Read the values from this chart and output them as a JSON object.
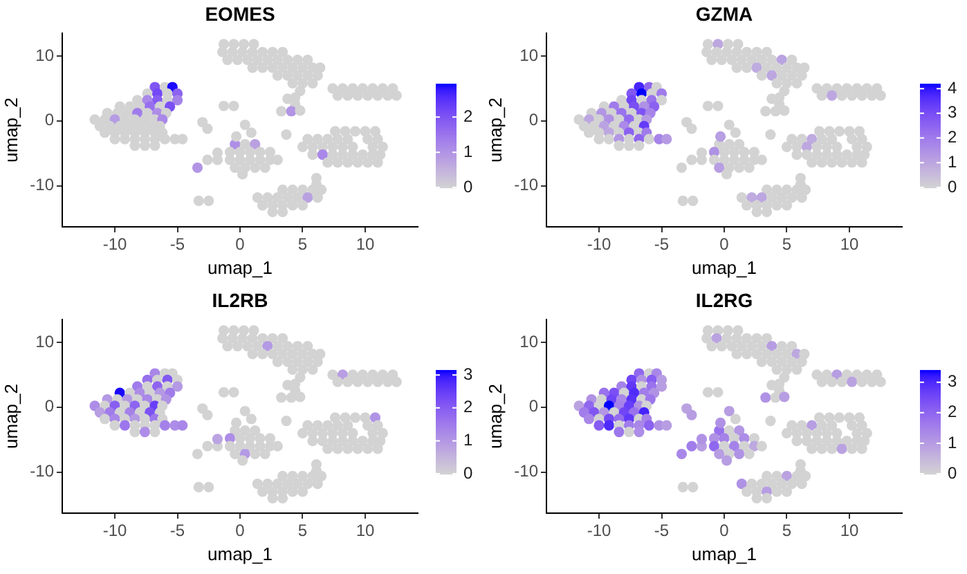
{
  "chart_data": [
    {
      "type": "scatter",
      "title": "EOMES",
      "xlabel": "umap_1",
      "ylabel": "umap_2",
      "xlim": [
        -14.2,
        14.2
      ],
      "ylim": [
        -16.3,
        13.5
      ],
      "xticks": [
        -10,
        -5,
        0,
        5,
        10
      ],
      "yticks": [
        -10,
        0,
        10
      ],
      "clim": [
        0,
        2.95
      ],
      "cticks": [
        0,
        1,
        2
      ],
      "marker": "circle",
      "x": [
        -6.8,
        -6,
        -5.4,
        -7.4,
        -6.6,
        -5.8,
        -5,
        -8.2,
        -7.4,
        -6.6,
        -5.8,
        -5,
        -9.6,
        -8.8,
        -8,
        -7.2,
        -6.4,
        -5.6,
        -10.6,
        -9.8,
        -9,
        -8.2,
        -7.4,
        -6.6,
        -5.9,
        -11.6,
        -10.8,
        -10,
        -9.2,
        -8.4,
        -7.6,
        -6.8,
        -6.2,
        -11.2,
        -10.4,
        -9.6,
        -8.8,
        -8,
        -7.2,
        -6.4,
        -10.8,
        -10,
        -9.2,
        -8.4,
        -7.6,
        -6.8,
        -6.2,
        -10,
        -9.2,
        -8.4,
        -7.6,
        -6.8,
        -6,
        -5.2,
        -4.6,
        -8.4,
        -7.6,
        -6.8,
        -1.3,
        -0.5,
        0.3,
        1.1,
        -1.4,
        -0.6,
        0.2,
        1,
        1.8,
        2.6,
        3.4,
        -1,
        -0.2,
        0.6,
        1.4,
        2.2,
        3,
        3.8,
        4.6,
        5.4,
        1,
        1.8,
        2.6,
        3.4,
        4.2,
        5,
        5.8,
        6.4,
        3,
        3.8,
        4.6,
        5.4,
        6.2,
        4.2,
        5,
        5.8,
        4.8,
        4.4,
        3.8,
        4.4,
        3.3,
        4.1,
        4.8,
        -1.3,
        -0.5,
        7.4,
        8.2,
        9,
        9.8,
        10.6,
        11.4,
        12.2,
        7.8,
        8.6,
        9.4,
        10.2,
        11,
        11.8,
        12.5,
        7.6,
        8.4,
        9.2,
        10,
        10.8,
        5.4,
        6.2,
        7,
        7.8,
        8.6,
        10.2,
        11,
        5,
        5.8,
        6.6,
        7.4,
        8.2,
        9,
        10.6,
        11.4,
        5.8,
        6.6,
        7.4,
        8.2,
        9,
        9.8,
        10.6,
        11.2,
        7,
        7.8,
        8.6,
        9.4,
        10.2,
        11,
        6.1,
        6.1,
        3.4,
        4.2,
        5,
        5.8,
        6.5,
        1.4,
        2.2,
        3,
        3.8,
        4.6,
        5.4,
        6.2,
        1.8,
        2.6,
        3.4,
        4.2,
        5,
        2.6,
        3.4,
        -3.3,
        -2.5,
        -0.4,
        0.4,
        1.2,
        -0.8,
        0,
        0.8,
        1.6,
        2.4,
        -2.6,
        -1.8,
        -0.8,
        0,
        0.8,
        1.6,
        2.4,
        3,
        -3.4,
        -0.4,
        0.4,
        1.2,
        2,
        0.2,
        -0.3,
        0.4,
        0.9,
        -3,
        -2.6,
        3.7,
        -1.8
      ],
      "values": [
        5.2,
        5.2,
        5.2,
        4.2,
        4.2,
        4.2,
        4.2,
        3.2,
        3.2,
        3.2,
        3.2,
        3.2,
        2.2,
        2.2,
        2.2,
        2.2,
        2.2,
        2.2,
        1.2,
        1.2,
        1.2,
        1.2,
        1.2,
        1.2,
        1.2,
        0.2,
        0.2,
        0.2,
        0.2,
        0.2,
        0.2,
        0.2,
        0.2,
        -0.8,
        -0.8,
        -0.8,
        -0.8,
        -0.8,
        -0.8,
        -0.8,
        -1.8,
        -1.8,
        -1.8,
        -1.8,
        -1.8,
        -1.8,
        -1.8,
        -2.8,
        -2.8,
        -2.8,
        -2.8,
        -2.8,
        -2.8,
        -2.8,
        -2.8,
        -3.8,
        -3.8,
        -3.8,
        11.8,
        11.8,
        11.8,
        11.8,
        10.6,
        10.6,
        10.6,
        10.6,
        10.6,
        10.6,
        10.6,
        9.4,
        9.4,
        9.4,
        9.4,
        9.4,
        9.4,
        9.4,
        9.4,
        9.4,
        8.2,
        8.2,
        8.2,
        8.2,
        8.2,
        8.2,
        8.2,
        8.2,
        7,
        7,
        7,
        7,
        7,
        5.8,
        5.8,
        5.8,
        4.6,
        3.6,
        3.4,
        2.6,
        1.5,
        1.5,
        1.6,
        2.3,
        2.3,
        5,
        5,
        5,
        5,
        5,
        5,
        5,
        3.9,
        3.9,
        3.9,
        3.9,
        3.9,
        3.9,
        3.9,
        -1.6,
        -1.6,
        -1.6,
        -1.6,
        -1.6,
        -2.8,
        -2.8,
        -2.8,
        -2.8,
        -2.8,
        -2.8,
        -2.8,
        -4,
        -4,
        -4,
        -4,
        -4,
        -4,
        -4,
        -4,
        -5.2,
        -5.2,
        -5.2,
        -5.2,
        -5.2,
        -5.2,
        -5.2,
        -5.2,
        -6.4,
        -6.4,
        -6.4,
        -6.4,
        -6.4,
        -6.4,
        -8.8,
        -9.8,
        -10.6,
        -10.6,
        -10.6,
        -10.6,
        -10.6,
        -11.8,
        -11.8,
        -11.8,
        -11.8,
        -11.8,
        -11.8,
        -11.8,
        -13,
        -13,
        -13,
        -13,
        -13,
        -14,
        -14,
        -12.3,
        -12.3,
        -3.6,
        -3.6,
        -3.6,
        -4.8,
        -4.8,
        -4.8,
        -4.8,
        -4.8,
        -6,
        -6,
        -6,
        -6,
        -6,
        -6,
        -6,
        -6,
        -7.2,
        -7.2,
        -7.2,
        -7.2,
        -7.2,
        -8.2,
        -2.4,
        -0.6,
        -1.8,
        -0.2,
        -1.2,
        -2.1,
        -4.9
      ],
      "cvalues": [
        2,
        0,
        2.9,
        0,
        2.2,
        0,
        1.8,
        0,
        1.2,
        1.9,
        0,
        1.3,
        0,
        0,
        0,
        1.6,
        0,
        2.1,
        0,
        0,
        0,
        1.4,
        0,
        1.1,
        0,
        0,
        0,
        0.9,
        0,
        0,
        0,
        0,
        1.2,
        0,
        0,
        0,
        0,
        0,
        0,
        0,
        0,
        0,
        0,
        0,
        0,
        0,
        0,
        0,
        0,
        0,
        0,
        0,
        0,
        0,
        0,
        0,
        0,
        0,
        0,
        0,
        0,
        0,
        0,
        0,
        0,
        0,
        0,
        0,
        0,
        0,
        0,
        0,
        0,
        0,
        0,
        0,
        0,
        0,
        0,
        0,
        0,
        0,
        0,
        0,
        0,
        0,
        0,
        0,
        0,
        0,
        0,
        0,
        0,
        0,
        0,
        0,
        0,
        0,
        0,
        1,
        0,
        0,
        0,
        0,
        0,
        0,
        0,
        0,
        0,
        0,
        0,
        0,
        0,
        0,
        0,
        0,
        0,
        0,
        0,
        0,
        0,
        0,
        0,
        0,
        0,
        0,
        0,
        0,
        0,
        0,
        0,
        0,
        0,
        0,
        0,
        0,
        0,
        0,
        1.2,
        0,
        0,
        0,
        0,
        0,
        0,
        0,
        0,
        0,
        0,
        0,
        0,
        0,
        0,
        0,
        0,
        0,
        0,
        0,
        0,
        0,
        0,
        0,
        0,
        0.8,
        0,
        0,
        0,
        0,
        0,
        0,
        0,
        0,
        0,
        0,
        1.1,
        0,
        0.8,
        0,
        0,
        0,
        0,
        0,
        0,
        0,
        0,
        0,
        0,
        0,
        0,
        0,
        1,
        0,
        0,
        0,
        0,
        0,
        0,
        0,
        0,
        0,
        0,
        0,
        0
      ]
    },
    {
      "type": "scatter",
      "title": "GZMA",
      "xlabel": "umap_1",
      "ylabel": "umap_2",
      "xlim": [
        -14.2,
        14.2
      ],
      "ylim": [
        -16.3,
        13.5
      ],
      "xticks": [
        -10,
        -5,
        0,
        5,
        10
      ],
      "yticks": [
        -10,
        0,
        10
      ],
      "clim": [
        0,
        4.2
      ],
      "cticks": [
        0,
        1,
        2,
        3,
        4
      ],
      "marker": "circle",
      "x": [
        -6.8,
        -6,
        -5.4,
        -7.4,
        -6.6,
        -5.8,
        -5,
        -8.2,
        -7.4,
        -6.6,
        -5.8,
        -5,
        -9.6,
        -8.8,
        -8,
        -7.2,
        -6.4,
        -5.6,
        -10.6,
        -9.8,
        -9,
        -8.2,
        -7.4,
        -6.6,
        -5.9,
        -11.6,
        -10.8,
        -10,
        -9.2,
        -8.4,
        -7.6,
        -6.8,
        -6.2,
        -11.2,
        -10.4,
        -9.6,
        -8.8,
        -8,
        -7.2,
        -6.4,
        -10.8,
        -10,
        -9.2,
        -8.4,
        -7.6,
        -6.8,
        -6.2,
        -10,
        -9.2,
        -8.4,
        -7.6,
        -6.8,
        -6,
        -5.2,
        -4.6,
        -8.4,
        -7.6,
        -6.8,
        -1.3,
        -0.5,
        0.3,
        1.1,
        -1.4,
        -0.6,
        0.2,
        1,
        1.8,
        2.6,
        3.4,
        -1,
        -0.2,
        0.6,
        1.4,
        2.2,
        3,
        3.8,
        4.6,
        5.4,
        1,
        1.8,
        2.6,
        3.4,
        4.2,
        5,
        5.8,
        6.4,
        3,
        3.8,
        4.6,
        5.4,
        6.2,
        4.2,
        5,
        5.8,
        4.8,
        4.4,
        3.8,
        4.4,
        3.3,
        4.1,
        4.8,
        -1.3,
        -0.5,
        7.4,
        8.2,
        9,
        9.8,
        10.6,
        11.4,
        12.2,
        7.8,
        8.6,
        9.4,
        10.2,
        11,
        11.8,
        12.5,
        7.6,
        8.4,
        9.2,
        10,
        10.8,
        5.4,
        6.2,
        7,
        7.8,
        8.6,
        10.2,
        11,
        5,
        5.8,
        6.6,
        7.4,
        8.2,
        9,
        10.6,
        11.4,
        5.8,
        6.6,
        7.4,
        8.2,
        9,
        9.8,
        10.6,
        11.2,
        7,
        7.8,
        8.6,
        9.4,
        10.2,
        11,
        6.1,
        6.1,
        3.4,
        4.2,
        5,
        5.8,
        6.5,
        1.4,
        2.2,
        3,
        3.8,
        4.6,
        5.4,
        6.2,
        1.8,
        2.6,
        3.4,
        4.2,
        5,
        2.6,
        3.4,
        -3.3,
        -2.5,
        -0.4,
        0.4,
        1.2,
        -0.8,
        0,
        0.8,
        1.6,
        2.4,
        -2.6,
        -1.8,
        -0.8,
        0,
        0.8,
        1.6,
        2.4,
        3,
        -3.4,
        -0.4,
        0.4,
        1.2,
        2,
        0.2,
        -0.3,
        0.4,
        0.9,
        -3,
        -2.6,
        3.7,
        -1.8
      ],
      "values": [
        5.2,
        5.2,
        5.2,
        4.2,
        4.2,
        4.2,
        4.2,
        3.2,
        3.2,
        3.2,
        3.2,
        3.2,
        2.2,
        2.2,
        2.2,
        2.2,
        2.2,
        2.2,
        1.2,
        1.2,
        1.2,
        1.2,
        1.2,
        1.2,
        1.2,
        0.2,
        0.2,
        0.2,
        0.2,
        0.2,
        0.2,
        0.2,
        0.2,
        -0.8,
        -0.8,
        -0.8,
        -0.8,
        -0.8,
        -0.8,
        -0.8,
        -1.8,
        -1.8,
        -1.8,
        -1.8,
        -1.8,
        -1.8,
        -1.8,
        -2.8,
        -2.8,
        -2.8,
        -2.8,
        -2.8,
        -2.8,
        -2.8,
        -2.8,
        -3.8,
        -3.8,
        -3.8,
        11.8,
        11.8,
        11.8,
        11.8,
        10.6,
        10.6,
        10.6,
        10.6,
        10.6,
        10.6,
        10.6,
        9.4,
        9.4,
        9.4,
        9.4,
        9.4,
        9.4,
        9.4,
        9.4,
        9.4,
        8.2,
        8.2,
        8.2,
        8.2,
        8.2,
        8.2,
        8.2,
        8.2,
        7,
        7,
        7,
        7,
        7,
        5.8,
        5.8,
        5.8,
        4.6,
        3.6,
        3.4,
        2.6,
        1.5,
        1.5,
        1.6,
        2.3,
        2.3,
        5,
        5,
        5,
        5,
        5,
        5,
        5,
        3.9,
        3.9,
        3.9,
        3.9,
        3.9,
        3.9,
        3.9,
        -1.6,
        -1.6,
        -1.6,
        -1.6,
        -1.6,
        -2.8,
        -2.8,
        -2.8,
        -2.8,
        -2.8,
        -2.8,
        -2.8,
        -4,
        -4,
        -4,
        -4,
        -4,
        -4,
        -4,
        -4,
        -5.2,
        -5.2,
        -5.2,
        -5.2,
        -5.2,
        -5.2,
        -5.2,
        -5.2,
        -6.4,
        -6.4,
        -6.4,
        -6.4,
        -6.4,
        -6.4,
        -8.8,
        -9.8,
        -10.6,
        -10.6,
        -10.6,
        -10.6,
        -10.6,
        -11.8,
        -11.8,
        -11.8,
        -11.8,
        -11.8,
        -11.8,
        -11.8,
        -13,
        -13,
        -13,
        -13,
        -13,
        -14,
        -14,
        -12.3,
        -12.3,
        -3.6,
        -3.6,
        -3.6,
        -4.8,
        -4.8,
        -4.8,
        -4.8,
        -4.8,
        -6,
        -6,
        -6,
        -6,
        -6,
        -6,
        -6,
        -6,
        -7.2,
        -7.2,
        -7.2,
        -7.2,
        -7.2,
        -8.2,
        -2.4,
        -0.6,
        -1.8,
        -0.2,
        -1.2,
        -2.1,
        -4.9
      ],
      "cvalues": [
        3.8,
        2.5,
        0,
        2.8,
        4.2,
        0,
        2,
        0,
        3.2,
        0,
        2.2,
        0,
        0,
        2,
        0,
        3,
        1.5,
        2.6,
        0,
        1.4,
        0,
        2.2,
        0,
        2.9,
        1.8,
        0,
        1,
        0,
        1.5,
        0,
        2.4,
        0,
        1.3,
        0,
        0,
        1.1,
        0,
        1.7,
        0,
        3.4,
        0,
        0,
        1,
        0,
        2.6,
        0,
        2,
        0,
        0,
        1.4,
        0,
        2.5,
        0,
        1.8,
        1.3,
        0,
        0,
        0,
        0,
        1,
        0,
        0,
        0,
        0,
        0,
        0,
        0,
        0,
        0,
        0,
        0,
        0,
        0,
        0,
        0,
        0,
        1.1,
        0,
        0,
        0,
        0.9,
        0,
        0,
        0,
        0,
        0,
        0,
        1,
        0,
        0,
        0,
        0,
        0,
        0,
        0,
        0,
        0,
        0,
        0,
        0,
        0,
        0,
        0,
        0,
        0,
        0,
        0,
        0,
        0,
        0,
        0,
        1,
        0,
        0,
        0,
        0,
        0,
        0,
        0,
        0,
        0,
        0,
        0,
        0,
        0.9,
        0,
        0,
        0,
        0,
        0,
        0,
        1,
        0,
        0,
        0,
        0,
        0,
        0,
        0,
        0,
        0,
        0,
        0,
        0,
        0,
        0,
        0,
        0,
        0,
        0,
        0,
        0,
        0,
        0,
        0,
        0,
        0,
        0,
        0,
        0.9,
        1,
        0,
        0,
        0,
        0,
        0,
        0,
        0,
        0,
        0,
        0,
        0,
        0,
        0,
        0,
        0,
        0,
        1.5,
        0,
        0,
        0,
        0,
        0,
        0,
        0,
        0,
        0,
        0,
        0,
        0,
        0,
        1.2,
        0,
        0,
        0,
        0,
        1.2,
        0,
        0,
        0,
        0,
        0,
        0
      ]
    },
    {
      "type": "scatter",
      "title": "IL2RB",
      "xlabel": "umap_1",
      "ylabel": "umap_2",
      "xlim": [
        -14.2,
        14.2
      ],
      "ylim": [
        -16.3,
        13.5
      ],
      "xticks": [
        -10,
        -5,
        0,
        5,
        10
      ],
      "yticks": [
        -10,
        0,
        10
      ],
      "clim": [
        0,
        3.15
      ],
      "cticks": [
        0,
        1,
        2,
        3
      ],
      "marker": "circle",
      "x": [
        -6.8,
        -6,
        -5.4,
        -7.4,
        -6.6,
        -5.8,
        -5,
        -8.2,
        -7.4,
        -6.6,
        -5.8,
        -5,
        -9.6,
        -8.8,
        -8,
        -7.2,
        -6.4,
        -5.6,
        -10.6,
        -9.8,
        -9,
        -8.2,
        -7.4,
        -6.6,
        -5.9,
        -11.6,
        -10.8,
        -10,
        -9.2,
        -8.4,
        -7.6,
        -6.8,
        -6.2,
        -11.2,
        -10.4,
        -9.6,
        -8.8,
        -8,
        -7.2,
        -6.4,
        -10.8,
        -10,
        -9.2,
        -8.4,
        -7.6,
        -6.8,
        -6.2,
        -10,
        -9.2,
        -8.4,
        -7.6,
        -6.8,
        -6,
        -5.2,
        -4.6,
        -8.4,
        -7.6,
        -6.8,
        -1.3,
        -0.5,
        0.3,
        1.1,
        -1.4,
        -0.6,
        0.2,
        1,
        1.8,
        2.6,
        3.4,
        -1,
        -0.2,
        0.6,
        1.4,
        2.2,
        3,
        3.8,
        4.6,
        5.4,
        1,
        1.8,
        2.6,
        3.4,
        4.2,
        5,
        5.8,
        6.4,
        3,
        3.8,
        4.6,
        5.4,
        6.2,
        4.2,
        5,
        5.8,
        4.8,
        4.4,
        3.8,
        4.4,
        3.3,
        4.1,
        4.8,
        -1.3,
        -0.5,
        7.4,
        8.2,
        9,
        9.8,
        10.6,
        11.4,
        12.2,
        7.8,
        8.6,
        9.4,
        10.2,
        11,
        11.8,
        12.5,
        7.6,
        8.4,
        9.2,
        10,
        10.8,
        5.4,
        6.2,
        7,
        7.8,
        8.6,
        10.2,
        11,
        5,
        5.8,
        6.6,
        7.4,
        8.2,
        9,
        10.6,
        11.4,
        5.8,
        6.6,
        7.4,
        8.2,
        9,
        9.8,
        10.6,
        11.2,
        7,
        7.8,
        8.6,
        9.4,
        10.2,
        11,
        6.1,
        6.1,
        3.4,
        4.2,
        5,
        5.8,
        6.5,
        1.4,
        2.2,
        3,
        3.8,
        4.6,
        5.4,
        6.2,
        1.8,
        2.6,
        3.4,
        4.2,
        5,
        2.6,
        3.4,
        -3.3,
        -2.5,
        -0.4,
        0.4,
        1.2,
        -0.8,
        0,
        0.8,
        1.6,
        2.4,
        -2.6,
        -1.8,
        -0.8,
        0,
        0.8,
        1.6,
        2.4,
        3,
        -3.4,
        -0.4,
        0.4,
        1.2,
        2,
        0.2,
        -0.3,
        0.4,
        0.9,
        -3,
        -2.6,
        3.7,
        -1.8
      ],
      "values": [
        5.2,
        5.2,
        5.2,
        4.2,
        4.2,
        4.2,
        4.2,
        3.2,
        3.2,
        3.2,
        3.2,
        3.2,
        2.2,
        2.2,
        2.2,
        2.2,
        2.2,
        2.2,
        1.2,
        1.2,
        1.2,
        1.2,
        1.2,
        1.2,
        1.2,
        0.2,
        0.2,
        0.2,
        0.2,
        0.2,
        0.2,
        0.2,
        0.2,
        -0.8,
        -0.8,
        -0.8,
        -0.8,
        -0.8,
        -0.8,
        -0.8,
        -1.8,
        -1.8,
        -1.8,
        -1.8,
        -1.8,
        -1.8,
        -1.8,
        -2.8,
        -2.8,
        -2.8,
        -2.8,
        -2.8,
        -2.8,
        -2.8,
        -2.8,
        -3.8,
        -3.8,
        -3.8,
        11.8,
        11.8,
        11.8,
        11.8,
        10.6,
        10.6,
        10.6,
        10.6,
        10.6,
        10.6,
        10.6,
        9.4,
        9.4,
        9.4,
        9.4,
        9.4,
        9.4,
        9.4,
        9.4,
        9.4,
        8.2,
        8.2,
        8.2,
        8.2,
        8.2,
        8.2,
        8.2,
        8.2,
        7,
        7,
        7,
        7,
        7,
        5.8,
        5.8,
        5.8,
        4.6,
        3.6,
        3.4,
        2.6,
        1.5,
        1.5,
        1.6,
        2.3,
        2.3,
        5,
        5,
        5,
        5,
        5,
        5,
        5,
        3.9,
        3.9,
        3.9,
        3.9,
        3.9,
        3.9,
        3.9,
        -1.6,
        -1.6,
        -1.6,
        -1.6,
        -1.6,
        -2.8,
        -2.8,
        -2.8,
        -2.8,
        -2.8,
        -2.8,
        -2.8,
        -4,
        -4,
        -4,
        -4,
        -4,
        -4,
        -4,
        -4,
        -5.2,
        -5.2,
        -5.2,
        -5.2,
        -5.2,
        -5.2,
        -5.2,
        -5.2,
        -6.4,
        -6.4,
        -6.4,
        -6.4,
        -6.4,
        -6.4,
        -8.8,
        -9.8,
        -10.6,
        -10.6,
        -10.6,
        -10.6,
        -10.6,
        -11.8,
        -11.8,
        -11.8,
        -11.8,
        -11.8,
        -11.8,
        -11.8,
        -13,
        -13,
        -13,
        -13,
        -13,
        -14,
        -14,
        -12.3,
        -12.3,
        -3.6,
        -3.6,
        -3.6,
        -4.8,
        -4.8,
        -4.8,
        -4.8,
        -4.8,
        -6,
        -6,
        -6,
        -6,
        -6,
        -6,
        -6,
        -6,
        -7.2,
        -7.2,
        -7.2,
        -7.2,
        -7.2,
        -8.2,
        -2.4,
        -0.6,
        -1.8,
        -0.2,
        -1.2,
        -2.1,
        -4.9
      ],
      "cvalues": [
        1.3,
        0,
        0,
        1.7,
        0,
        2.1,
        0,
        1.5,
        0,
        1.9,
        0,
        1,
        3.1,
        0,
        1.2,
        0,
        1,
        1.5,
        1,
        0,
        1,
        0,
        1.3,
        0,
        1.1,
        1.2,
        0,
        2,
        0,
        1.9,
        0,
        2.5,
        0,
        0.9,
        1.5,
        0,
        1.4,
        0,
        2.2,
        0,
        0,
        1.3,
        0,
        1,
        0,
        1.6,
        0,
        0,
        1.6,
        0,
        0,
        0,
        1.4,
        1.2,
        1.3,
        0,
        1.2,
        0,
        0,
        0,
        0,
        0,
        0,
        0,
        0,
        0,
        0,
        0,
        0,
        0,
        0,
        0,
        0,
        1,
        0,
        0,
        0,
        0,
        0,
        0,
        0,
        0,
        0,
        0,
        0,
        0,
        0,
        0,
        0,
        0,
        0,
        0,
        0,
        0,
        0,
        0,
        0,
        0,
        0,
        0,
        0,
        0,
        0,
        0,
        0.9,
        0,
        0,
        0,
        0,
        0,
        0,
        0,
        0,
        0,
        0,
        0,
        0,
        0,
        0,
        0,
        0,
        1.1,
        0,
        0,
        0,
        0,
        0,
        0,
        0,
        0,
        0,
        0,
        0,
        0,
        0,
        0,
        0,
        0,
        0,
        0,
        0,
        0,
        0,
        0,
        0,
        0,
        0,
        0,
        0,
        0,
        0,
        0,
        0,
        0,
        0,
        0,
        0,
        0,
        0,
        0,
        0,
        0,
        0,
        0,
        0,
        0,
        0,
        0,
        0,
        0,
        0,
        0,
        0,
        0,
        0,
        0,
        0,
        1.2,
        0,
        0,
        0,
        0,
        0,
        0,
        0,
        0,
        0,
        0,
        0,
        0,
        0,
        0,
        1,
        0,
        0,
        0,
        0,
        0,
        0,
        0,
        0,
        0,
        0.8
      ]
    },
    {
      "type": "scatter",
      "title": "IL2RG",
      "xlabel": "umap_1",
      "ylabel": "umap_2",
      "xlim": [
        -14.2,
        14.2
      ],
      "ylim": [
        -16.3,
        13.5
      ],
      "xticks": [
        -10,
        -5,
        0,
        5,
        10
      ],
      "yticks": [
        -10,
        0,
        10
      ],
      "clim": [
        0,
        3.4
      ],
      "cticks": [
        0,
        1,
        2,
        3
      ],
      "marker": "circle",
      "x": [
        -6.8,
        -6,
        -5.4,
        -7.4,
        -6.6,
        -5.8,
        -5,
        -8.2,
        -7.4,
        -6.6,
        -5.8,
        -5,
        -9.6,
        -8.8,
        -8,
        -7.2,
        -6.4,
        -5.6,
        -10.6,
        -9.8,
        -9,
        -8.2,
        -7.4,
        -6.6,
        -5.9,
        -11.6,
        -10.8,
        -10,
        -9.2,
        -8.4,
        -7.6,
        -6.8,
        -6.2,
        -11.2,
        -10.4,
        -9.6,
        -8.8,
        -8,
        -7.2,
        -6.4,
        -10.8,
        -10,
        -9.2,
        -8.4,
        -7.6,
        -6.8,
        -6.2,
        -10,
        -9.2,
        -8.4,
        -7.6,
        -6.8,
        -6,
        -5.2,
        -4.6,
        -8.4,
        -7.6,
        -6.8,
        -1.3,
        -0.5,
        0.3,
        1.1,
        -1.4,
        -0.6,
        0.2,
        1,
        1.8,
        2.6,
        3.4,
        -1,
        -0.2,
        0.6,
        1.4,
        2.2,
        3,
        3.8,
        4.6,
        5.4,
        1,
        1.8,
        2.6,
        3.4,
        4.2,
        5,
        5.8,
        6.4,
        3,
        3.8,
        4.6,
        5.4,
        6.2,
        4.2,
        5,
        5.8,
        4.8,
        4.4,
        3.8,
        4.4,
        3.3,
        4.1,
        4.8,
        -1.3,
        -0.5,
        7.4,
        8.2,
        9,
        9.8,
        10.6,
        11.4,
        12.2,
        7.8,
        8.6,
        9.4,
        10.2,
        11,
        11.8,
        12.5,
        7.6,
        8.4,
        9.2,
        10,
        10.8,
        5.4,
        6.2,
        7,
        7.8,
        8.6,
        10.2,
        11,
        5,
        5.8,
        6.6,
        7.4,
        8.2,
        9,
        10.6,
        11.4,
        5.8,
        6.6,
        7.4,
        8.2,
        9,
        9.8,
        10.6,
        11.2,
        7,
        7.8,
        8.6,
        9.4,
        10.2,
        11,
        6.1,
        6.1,
        3.4,
        4.2,
        5,
        5.8,
        6.5,
        1.4,
        2.2,
        3,
        3.8,
        4.6,
        5.4,
        6.2,
        1.8,
        2.6,
        3.4,
        4.2,
        5,
        2.6,
        3.4,
        -3.3,
        -2.5,
        -0.4,
        0.4,
        1.2,
        -0.8,
        0,
        0.8,
        1.6,
        2.4,
        -2.6,
        -1.8,
        -0.8,
        0,
        0.8,
        1.6,
        2.4,
        3,
        -3.4,
        -0.4,
        0.4,
        1.2,
        2,
        0.2,
        -0.3,
        0.4,
        0.9,
        -3,
        -2.6,
        3.7,
        -1.8
      ],
      "values": [
        5.2,
        5.2,
        5.2,
        4.2,
        4.2,
        4.2,
        4.2,
        3.2,
        3.2,
        3.2,
        3.2,
        3.2,
        2.2,
        2.2,
        2.2,
        2.2,
        2.2,
        2.2,
        1.2,
        1.2,
        1.2,
        1.2,
        1.2,
        1.2,
        1.2,
        0.2,
        0.2,
        0.2,
        0.2,
        0.2,
        0.2,
        0.2,
        0.2,
        -0.8,
        -0.8,
        -0.8,
        -0.8,
        -0.8,
        -0.8,
        -0.8,
        -1.8,
        -1.8,
        -1.8,
        -1.8,
        -1.8,
        -1.8,
        -1.8,
        -2.8,
        -2.8,
        -2.8,
        -2.8,
        -2.8,
        -2.8,
        -2.8,
        -2.8,
        -3.8,
        -3.8,
        -3.8,
        11.8,
        11.8,
        11.8,
        11.8,
        10.6,
        10.6,
        10.6,
        10.6,
        10.6,
        10.6,
        10.6,
        9.4,
        9.4,
        9.4,
        9.4,
        9.4,
        9.4,
        9.4,
        9.4,
        9.4,
        8.2,
        8.2,
        8.2,
        8.2,
        8.2,
        8.2,
        8.2,
        8.2,
        7,
        7,
        7,
        7,
        7,
        5.8,
        5.8,
        5.8,
        4.6,
        3.6,
        3.4,
        2.6,
        1.5,
        1.5,
        1.6,
        2.3,
        2.3,
        5,
        5,
        5,
        5,
        5,
        5,
        5,
        3.9,
        3.9,
        3.9,
        3.9,
        3.9,
        3.9,
        3.9,
        -1.6,
        -1.6,
        -1.6,
        -1.6,
        -1.6,
        -2.8,
        -2.8,
        -2.8,
        -2.8,
        -2.8,
        -2.8,
        -2.8,
        -4,
        -4,
        -4,
        -4,
        -4,
        -4,
        -4,
        -4,
        -5.2,
        -5.2,
        -5.2,
        -5.2,
        -5.2,
        -5.2,
        -5.2,
        -5.2,
        -6.4,
        -6.4,
        -6.4,
        -6.4,
        -6.4,
        -6.4,
        -8.8,
        -9.8,
        -10.6,
        -10.6,
        -10.6,
        -10.6,
        -10.6,
        -11.8,
        -11.8,
        -11.8,
        -11.8,
        -11.8,
        -11.8,
        -11.8,
        -13,
        -13,
        -13,
        -13,
        -13,
        -14,
        -14,
        -12.3,
        -12.3,
        -3.6,
        -3.6,
        -3.6,
        -4.8,
        -4.8,
        -4.8,
        -4.8,
        -4.8,
        -6,
        -6,
        -6,
        -6,
        -6,
        -6,
        -6,
        -6,
        -7.2,
        -7.2,
        -7.2,
        -7.2,
        -7.2,
        -8.2,
        -2.4,
        -0.6,
        -1.8,
        -0.2,
        -1.2,
        -2.1,
        -4.9
      ],
      "cvalues": [
        2,
        0,
        1.4,
        2.6,
        1.2,
        2.2,
        1,
        1.5,
        2.8,
        0,
        1.8,
        1,
        1.8,
        2.4,
        0,
        3,
        1.6,
        1.2,
        1.2,
        0,
        2.6,
        1.4,
        2.9,
        0,
        1.7,
        0.9,
        2,
        0,
        3.4,
        1.5,
        2.7,
        1.2,
        0,
        1.6,
        2.3,
        1.1,
        0,
        2.6,
        1.8,
        3.1,
        1.4,
        0,
        2.5,
        1.9,
        2.8,
        0,
        1.5,
        2.2,
        3,
        0,
        1.6,
        1.4,
        2.1,
        1.2,
        1,
        1.7,
        0,
        1.3,
        0,
        0,
        0,
        0,
        0,
        0.9,
        0,
        0,
        0,
        0,
        0,
        0,
        0,
        0,
        0,
        0,
        0,
        1,
        0,
        0,
        0,
        0,
        0,
        0,
        0,
        0,
        0.8,
        0,
        0,
        0,
        0,
        0,
        0,
        0,
        0,
        0,
        0,
        0,
        0,
        0,
        1.2,
        0,
        1,
        0,
        0,
        0,
        0,
        1,
        0,
        0,
        0,
        0,
        0,
        0,
        0,
        0.9,
        0,
        0,
        0,
        0,
        0,
        0,
        0,
        0,
        0,
        0,
        1,
        0,
        0,
        0,
        0,
        0,
        0,
        0,
        0,
        0,
        0,
        0,
        0,
        0,
        0,
        0,
        0,
        0,
        0,
        0,
        0,
        0,
        0,
        0,
        0.9,
        0,
        0,
        0,
        0,
        0,
        0,
        0.9,
        0,
        0,
        1.2,
        0,
        0,
        0,
        0,
        0,
        0,
        0,
        0,
        1,
        0,
        0,
        0,
        0,
        0,
        0,
        1.8,
        0,
        1.1,
        1.2,
        1.5,
        0,
        1.3,
        0,
        1.6,
        1,
        2,
        0,
        1.5,
        0,
        0.8,
        0,
        1.4,
        1,
        0,
        1.2,
        0,
        1,
        1.2,
        1,
        0,
        0.9,
        1,
        0,
        1.2
      ]
    }
  ]
}
